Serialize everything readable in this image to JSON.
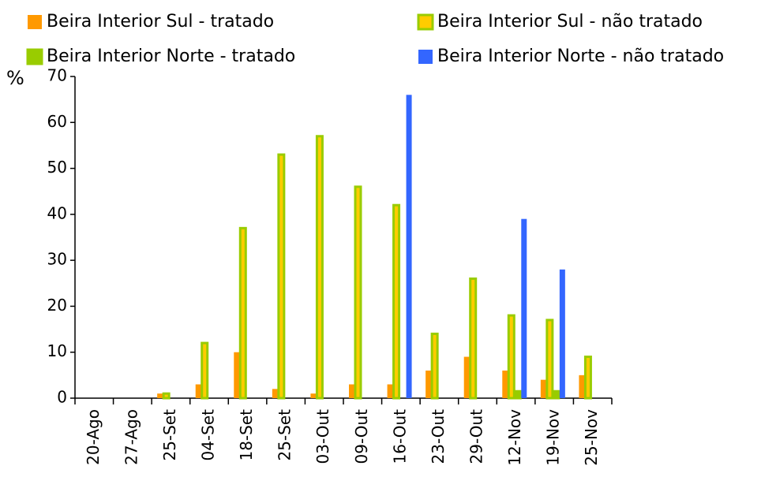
{
  "chart_data": {
    "type": "bar",
    "y_label": "%",
    "categories": [
      "20-Ago",
      "27-Ago",
      "25-Set",
      "04-Set",
      "18-Set",
      "25-Set",
      "03-Out",
      "09-Out",
      "16-Out",
      "23-Out",
      "29-Out",
      "12-Nov",
      "19-Nov",
      "25-Nov"
    ],
    "series": [
      {
        "name": "Beira Interior Sul - tratado",
        "color": "#ff9900",
        "values": [
          0,
          0,
          1,
          3,
          10,
          2,
          1,
          3,
          3,
          6,
          9,
          6,
          4,
          5
        ]
      },
      {
        "name": "Beira Interior Sul - não tratado",
        "color": "#ffcc00",
        "border": "#99cc00",
        "values": [
          0,
          0,
          1,
          12,
          37,
          53,
          57,
          46,
          42,
          14,
          26,
          18,
          17,
          9
        ]
      },
      {
        "name": "Beira Interior Norte - tratado",
        "color": "#99cc00",
        "border": "#99cc00",
        "values": [
          0,
          0,
          0,
          0,
          0,
          0,
          0,
          0,
          0,
          0,
          0,
          1.5,
          1.5,
          0
        ]
      },
      {
        "name": "Beira Interior Norte - não tratado",
        "color": "#3366ff",
        "values": [
          0,
          0,
          0,
          0,
          0,
          0,
          0,
          0,
          66,
          0,
          0,
          39,
          28,
          0
        ]
      }
    ],
    "ylim": [
      0,
      70
    ],
    "yticks": [
      0,
      10,
      20,
      30,
      40,
      50,
      60,
      70
    ],
    "grid": false
  }
}
